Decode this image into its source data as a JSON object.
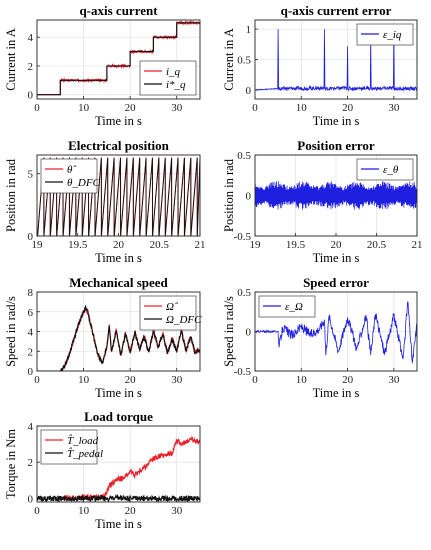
{
  "chart_data": [
    {
      "id": "p1",
      "type": "line",
      "title": "q-axis current",
      "xlabel": "Time in s",
      "ylabel": "Current in A",
      "xlim": [
        0,
        35
      ],
      "ylim": [
        -0.3,
        5.2
      ],
      "xticks": [
        0,
        10,
        20,
        30
      ],
      "yticks": [
        0,
        2,
        4
      ],
      "grid": true,
      "legend_position": "bottom-right",
      "series": [
        {
          "name": "i_q",
          "color": "#e8202a",
          "x": [
            0,
            5,
            5,
            15,
            15,
            20,
            20,
            25,
            25,
            30,
            30,
            35
          ],
          "y": [
            0,
            0,
            1,
            1,
            2,
            2,
            3,
            3,
            4,
            4,
            5,
            5
          ]
        },
        {
          "name": "i*_q",
          "color": "#111111",
          "x": [
            0,
            5,
            5,
            15,
            15,
            20,
            20,
            25,
            25,
            30,
            30,
            35
          ],
          "y": [
            0,
            0,
            1,
            1,
            2,
            2,
            3,
            3,
            4,
            4,
            5,
            5
          ]
        }
      ]
    },
    {
      "id": "p2",
      "type": "line",
      "title": "q-axis current error",
      "xlabel": "Time in s",
      "ylabel": "Current in A",
      "xlim": [
        0,
        35
      ],
      "ylim": [
        -0.15,
        1.15
      ],
      "xticks": [
        0,
        10,
        20,
        30
      ],
      "yticks": [
        0,
        0.5,
        1
      ],
      "grid": true,
      "legend_position": "top-right",
      "series": [
        {
          "name": "ε_iq",
          "color": "#1f1fe0",
          "x": [
            0,
            4.9,
            5,
            5.1,
            14.9,
            15,
            15.1,
            19.9,
            20,
            20.1,
            24.9,
            25,
            25.1,
            29.9,
            30,
            30.1,
            35
          ],
          "y": [
            0,
            0.02,
            1.0,
            0.02,
            0.03,
            1.0,
            0.02,
            0.03,
            0.72,
            0.02,
            0.03,
            0.9,
            0.02,
            0.03,
            1.0,
            0.02,
            0.02
          ]
        }
      ]
    },
    {
      "id": "p3",
      "type": "line",
      "title": "Electrical position",
      "xlabel": "Time in s",
      "ylabel": "Position in rad",
      "xlim": [
        19,
        21
      ],
      "ylim": [
        0,
        6.5
      ],
      "xticks": [
        19,
        19.5,
        20,
        20.5,
        21
      ],
      "yticks": [
        0,
        5
      ],
      "grid": true,
      "legend_position": "top-left",
      "sawtooth_period_s": 0.0784,
      "sawtooth_max_rad": 6.28,
      "series": [
        {
          "name": "θ̂",
          "color": "#e8202a"
        },
        {
          "name": "θ_DFC",
          "color": "#111111"
        }
      ]
    },
    {
      "id": "p4",
      "type": "line",
      "title": "Position error",
      "xlabel": "Time in s",
      "ylabel": "Position in rad",
      "xlim": [
        19,
        21
      ],
      "ylim": [
        -0.5,
        0.5
      ],
      "xticks": [
        19,
        19.5,
        20,
        20.5,
        21
      ],
      "yticks": [
        -0.5,
        0,
        0.5
      ],
      "grid": true,
      "legend_position": "top-right",
      "series": [
        {
          "name": "ε_θ",
          "color": "#1f1fe0",
          "amplitude": [
            0.12,
            0.18
          ]
        }
      ]
    },
    {
      "id": "p5",
      "type": "line",
      "title": "Mechanical speed",
      "xlabel": "Time in s",
      "ylabel": "Speed in rad/s",
      "xlim": [
        0,
        35
      ],
      "ylim": [
        0,
        8
      ],
      "xticks": [
        0,
        10,
        20,
        30
      ],
      "yticks": [
        0,
        2,
        4,
        6,
        8
      ],
      "grid": true,
      "legend_position": "top-right",
      "series": [
        {
          "name": "Ω̂",
          "color": "#e8202a",
          "x": [
            0,
            5,
            6,
            7,
            8,
            9,
            10,
            10.5,
            11,
            12,
            13,
            14,
            15,
            15.5,
            16,
            17,
            18,
            19,
            20,
            21,
            22,
            23,
            24,
            25,
            26,
            27,
            28,
            29,
            30,
            31,
            32,
            33,
            34,
            35
          ],
          "y": [
            0,
            0,
            0.5,
            1.8,
            3.3,
            4.8,
            6.0,
            6.4,
            5.8,
            3.8,
            1.8,
            0.8,
            2.5,
            4.7,
            2.0,
            4.2,
            1.6,
            3.9,
            1.8,
            4.0,
            2.2,
            3.6,
            1.9,
            4.1,
            2.4,
            3.8,
            1.8,
            3.3,
            2.0,
            4.2,
            2.0,
            3.5,
            1.8,
            2.2
          ]
        },
        {
          "name": "Ω_DFC",
          "color": "#111111",
          "x": [
            0,
            5,
            6,
            7,
            8,
            9,
            10,
            10.5,
            11,
            12,
            13,
            14,
            15,
            15.5,
            16,
            17,
            18,
            19,
            20,
            21,
            22,
            23,
            24,
            25,
            26,
            27,
            28,
            29,
            30,
            31,
            32,
            33,
            34,
            35
          ],
          "y": [
            0,
            0,
            0.5,
            1.8,
            3.3,
            4.8,
            6.0,
            6.4,
            5.8,
            3.8,
            1.8,
            0.8,
            2.5,
            4.6,
            2.0,
            4.1,
            1.6,
            3.8,
            1.8,
            3.9,
            2.2,
            3.5,
            1.9,
            4.0,
            2.4,
            3.7,
            1.8,
            3.2,
            2.0,
            4.1,
            2.0,
            3.4,
            1.8,
            2.1
          ]
        }
      ]
    },
    {
      "id": "p6",
      "type": "line",
      "title": "Speed error",
      "xlabel": "Time in s",
      "ylabel": "Speed in rad/s",
      "xlim": [
        0,
        35
      ],
      "ylim": [
        -0.5,
        0.5
      ],
      "xticks": [
        0,
        10,
        20,
        30
      ],
      "yticks": [
        -0.5,
        0,
        0.5
      ],
      "grid": true,
      "legend_position": "top-left",
      "series": [
        {
          "name": "ε_Ω",
          "color": "#1f1fe0",
          "x": [
            0,
            5,
            5.2,
            6,
            8,
            10,
            12,
            14,
            15,
            15.3,
            16,
            18,
            20,
            22,
            24,
            25,
            26,
            28,
            30,
            32,
            33,
            34,
            35
          ],
          "y": [
            0,
            0,
            -0.2,
            0.05,
            -0.05,
            0.06,
            -0.04,
            0.04,
            0.15,
            -0.3,
            0.2,
            -0.25,
            0.18,
            -0.22,
            0.2,
            -0.3,
            0.22,
            -0.28,
            0.2,
            -0.35,
            0.38,
            -0.4,
            0.1
          ]
        }
      ]
    },
    {
      "id": "p7",
      "type": "line",
      "title": "Load torque",
      "xlabel": "Time in s",
      "ylabel": "Torque in Nm",
      "xlim": [
        0,
        35
      ],
      "ylim": [
        -0.2,
        4
      ],
      "xticks": [
        0,
        10,
        20,
        30
      ],
      "yticks": [
        0,
        2,
        4
      ],
      "grid": true,
      "legend_position": "top-left",
      "series": [
        {
          "name": "T̂_load",
          "color": "#e8202a",
          "x": [
            5.5,
            8,
            10,
            12,
            14,
            15,
            15.5,
            17,
            19,
            20,
            21,
            23,
            25,
            27,
            29,
            30,
            31,
            33,
            35
          ],
          "y": [
            0.05,
            0.0,
            0.05,
            0.1,
            0.05,
            0.3,
            0.7,
            1.0,
            1.2,
            1.5,
            1.3,
            1.7,
            2.2,
            2.4,
            2.5,
            3.2,
            3.0,
            3.3,
            3.1
          ]
        },
        {
          "name": "T̂_pedal",
          "color": "#111111",
          "x": [
            0,
            35
          ],
          "y": [
            0,
            0
          ]
        }
      ]
    }
  ]
}
